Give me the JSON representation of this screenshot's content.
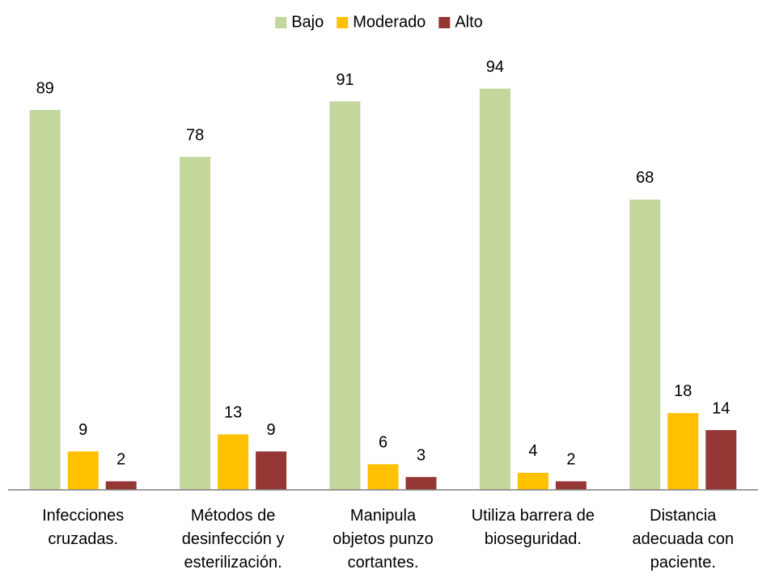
{
  "chart_data": {
    "type": "bar",
    "categories": [
      "Infecciones\ncruzadas.",
      "Métodos de\ndesinfección y\nesterilización.",
      "Manipula\nobjetos punzo\ncortantes.",
      "Utiliza barrera de\nbioseguridad.",
      "Distancia\nadecuada con\npaciente."
    ],
    "series": [
      {
        "name": "Bajo",
        "color": "#c3d69b",
        "values": [
          89,
          78,
          91,
          94,
          68
        ]
      },
      {
        "name": "Moderado",
        "color": "#ffc000",
        "values": [
          9,
          13,
          6,
          4,
          18
        ]
      },
      {
        "name": "Alto",
        "color": "#953735",
        "values": [
          2,
          9,
          3,
          2,
          14
        ]
      }
    ],
    "ylim": [
      0,
      100
    ],
    "legend": "top"
  }
}
